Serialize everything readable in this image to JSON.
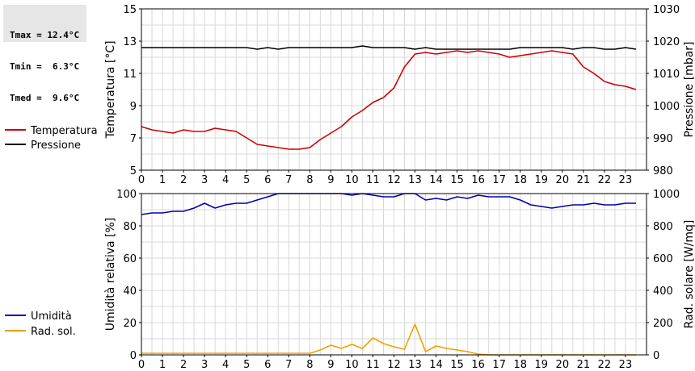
{
  "stats": {
    "tmax": "Tmax = 12.4°C",
    "tmin": "Tmin =  6.3°C",
    "tmed": "Tmed =  9.6°C"
  },
  "colors": {
    "temperature": "#d00000",
    "pressure": "#000000",
    "humidity": "#0000b0",
    "solar": "#f0a000",
    "grid": "#d8d8d8"
  },
  "chart_data": [
    {
      "type": "line",
      "xlim": [
        0,
        24
      ],
      "x_ticks": [
        "0",
        "1",
        "2",
        "3",
        "4",
        "5",
        "6",
        "7",
        "8",
        "9",
        "10",
        "11",
        "12",
        "13",
        "14",
        "15",
        "16",
        "17",
        "18",
        "19",
        "20",
        "21",
        "22",
        "23"
      ],
      "grid": true,
      "legend_placement": "left",
      "ylabel_left": "Temperatura [°C]",
      "ylim_left": [
        5,
        15
      ],
      "y_ticks_left": [
        "5",
        "7",
        "9",
        "11",
        "13",
        "15"
      ],
      "ylabel_right": "Pressione [mbar]",
      "ylim_right": [
        980,
        1030
      ],
      "y_ticks_right": [
        "980",
        "990",
        "1000",
        "1010",
        "1020",
        "1030"
      ],
      "series": [
        {
          "name": "Temperatura",
          "axis": "left",
          "x": [
            0,
            0.5,
            1,
            1.5,
            2,
            2.5,
            3,
            3.5,
            4,
            4.5,
            5,
            5.5,
            6,
            6.5,
            7,
            7.5,
            8,
            8.5,
            9,
            9.5,
            10,
            10.5,
            11,
            11.5,
            12,
            12.5,
            13,
            13.5,
            14,
            14.5,
            15,
            15.5,
            16,
            16.5,
            17,
            17.5,
            18,
            18.5,
            19,
            19.5,
            20,
            20.5,
            21,
            21.5,
            22,
            22.5,
            23,
            23.5
          ],
          "values": [
            7.7,
            7.5,
            7.4,
            7.3,
            7.5,
            7.4,
            7.4,
            7.6,
            7.5,
            7.4,
            7.0,
            6.6,
            6.5,
            6.4,
            6.3,
            6.3,
            6.4,
            6.9,
            7.3,
            7.7,
            8.3,
            8.7,
            9.2,
            9.5,
            10.1,
            11.4,
            12.2,
            12.3,
            12.2,
            12.3,
            12.4,
            12.3,
            12.4,
            12.3,
            12.2,
            12.0,
            12.1,
            12.2,
            12.3,
            12.4,
            12.3,
            12.2,
            11.4,
            11.0,
            10.5,
            10.3,
            10.2,
            10.0
          ]
        },
        {
          "name": "Pressione",
          "axis": "right",
          "x": [
            0,
            0.5,
            1,
            1.5,
            2,
            2.5,
            3,
            3.5,
            4,
            4.5,
            5,
            5.5,
            6,
            6.5,
            7,
            7.5,
            8,
            8.5,
            9,
            9.5,
            10,
            10.5,
            11,
            11.5,
            12,
            12.5,
            13,
            13.5,
            14,
            14.5,
            15,
            15.5,
            16,
            16.5,
            17,
            17.5,
            18,
            18.5,
            19,
            19.5,
            20,
            20.5,
            21,
            21.5,
            22,
            22.5,
            23,
            23.5
          ],
          "values": [
            1018,
            1018,
            1018,
            1018,
            1018,
            1018,
            1018,
            1018,
            1018,
            1018,
            1018,
            1017.5,
            1018,
            1017.5,
            1018,
            1018,
            1018,
            1018,
            1018,
            1018,
            1018,
            1018.5,
            1018,
            1018,
            1018,
            1018,
            1017.5,
            1018,
            1017.5,
            1017.5,
            1017.5,
            1017.5,
            1017.5,
            1017.5,
            1017.5,
            1017.5,
            1018,
            1018,
            1018,
            1018,
            1018,
            1017.5,
            1018,
            1018,
            1017.5,
            1017.5,
            1018,
            1017.5
          ]
        }
      ]
    },
    {
      "type": "line",
      "xlim": [
        0,
        24
      ],
      "x_ticks": [
        "0",
        "1",
        "2",
        "3",
        "4",
        "5",
        "6",
        "7",
        "8",
        "9",
        "10",
        "11",
        "12",
        "13",
        "14",
        "15",
        "16",
        "17",
        "18",
        "19",
        "20",
        "21",
        "22",
        "23"
      ],
      "grid": true,
      "legend_placement": "left",
      "ylabel_left": "Umidità relativa [%]",
      "ylim_left": [
        0,
        100
      ],
      "y_ticks_left": [
        "0",
        "20",
        "40",
        "60",
        "80",
        "100"
      ],
      "ylabel_right": "Rad. solare [W/mq]",
      "ylim_right": [
        0,
        1000
      ],
      "y_ticks_right": [
        "0",
        "200",
        "400",
        "600",
        "800",
        "1000"
      ],
      "series": [
        {
          "name": "Umidità",
          "axis": "left",
          "x": [
            0,
            0.5,
            1,
            1.5,
            2,
            2.5,
            3,
            3.5,
            4,
            4.5,
            5,
            5.5,
            6,
            6.5,
            7,
            7.5,
            8,
            8.5,
            9,
            9.5,
            10,
            10.5,
            11,
            11.5,
            12,
            12.5,
            13,
            13.5,
            14,
            14.5,
            15,
            15.5,
            16,
            16.5,
            17,
            17.5,
            18,
            18.5,
            19,
            19.5,
            20,
            20.5,
            21,
            21.5,
            22,
            22.5,
            23,
            23.5
          ],
          "values": [
            87,
            88,
            88,
            89,
            89,
            91,
            94,
            91,
            93,
            94,
            94,
            96,
            98,
            100,
            100,
            100,
            100,
            100,
            100,
            100,
            99,
            100,
            99,
            98,
            98,
            100,
            100,
            96,
            97,
            96,
            98,
            97,
            99,
            98,
            98,
            98,
            96,
            93,
            92,
            91,
            92,
            93,
            93,
            94,
            93,
            93,
            94,
            94
          ]
        },
        {
          "name": "Rad. sol.",
          "axis": "right",
          "x": [
            0,
            0.5,
            1,
            1.5,
            2,
            2.5,
            3,
            3.5,
            4,
            4.5,
            5,
            5.5,
            6,
            6.5,
            7,
            7.5,
            8,
            8.5,
            9,
            9.5,
            10,
            10.5,
            11,
            11.5,
            12,
            12.5,
            13,
            13.5,
            14,
            14.5,
            15,
            15.5,
            16,
            16.5,
            17,
            17.5,
            18,
            18.5,
            19,
            19.5,
            20,
            20.5,
            21,
            21.5,
            22,
            22.5,
            23,
            23.5
          ],
          "values": [
            10,
            10,
            10,
            10,
            10,
            10,
            10,
            10,
            10,
            10,
            10,
            10,
            10,
            10,
            10,
            10,
            10,
            30,
            60,
            40,
            65,
            40,
            105,
            70,
            50,
            35,
            190,
            20,
            55,
            40,
            30,
            20,
            5,
            0,
            0,
            0,
            0,
            0,
            0,
            0,
            0,
            0,
            0,
            0,
            0,
            0,
            0,
            0
          ]
        }
      ]
    }
  ]
}
